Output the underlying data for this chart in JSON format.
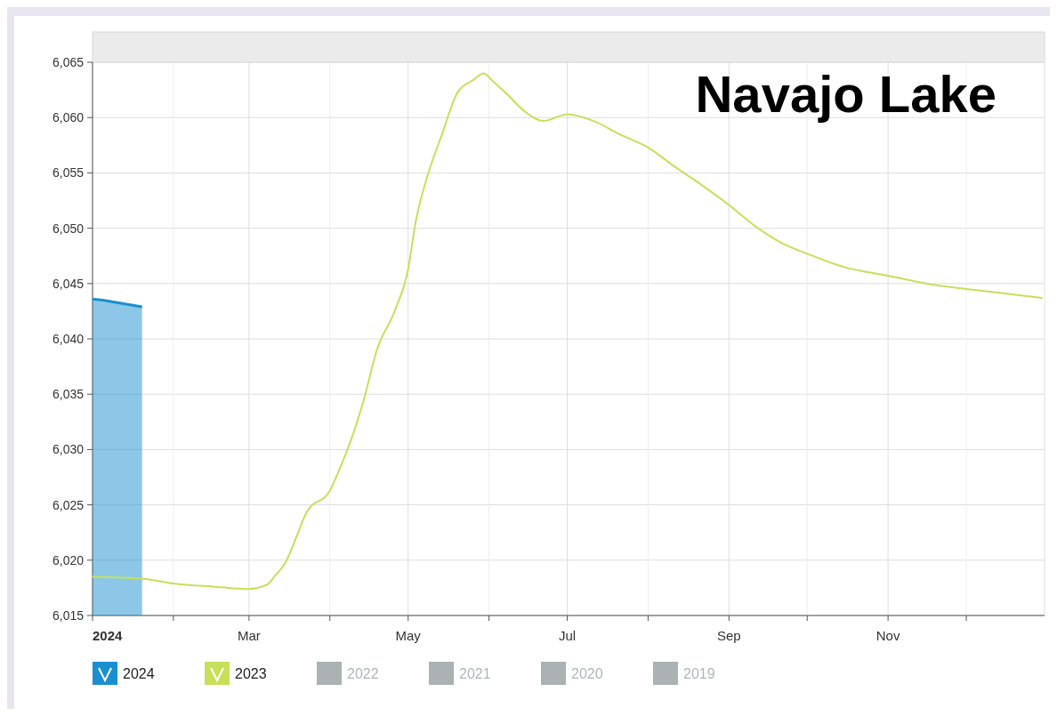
{
  "chart_data": {
    "type": "line",
    "title": "Navajo Lake",
    "xlim": [
      "2024-01-01",
      "2024-12-31"
    ],
    "xticks": [
      {
        "value": "2024-01-01",
        "label": "2024"
      },
      {
        "value": "2024-02-01",
        "label": null
      },
      {
        "value": "2024-03-01",
        "label": "Mar"
      },
      {
        "value": "2024-04-01",
        "label": null
      },
      {
        "value": "2024-05-01",
        "label": "May"
      },
      {
        "value": "2024-06-01",
        "label": null
      },
      {
        "value": "2024-07-01",
        "label": "Jul"
      },
      {
        "value": "2024-08-01",
        "label": null
      },
      {
        "value": "2024-09-01",
        "label": "Sep"
      },
      {
        "value": "2024-10-01",
        "label": null
      },
      {
        "value": "2024-11-01",
        "label": "Nov"
      },
      {
        "value": "2024-12-01",
        "label": null
      }
    ],
    "ylim": [
      6015,
      6065
    ],
    "yticks": [
      {
        "value": 6015,
        "label": "6,015"
      },
      {
        "value": 6020,
        "label": "6,020"
      },
      {
        "value": 6025,
        "label": "6,025"
      },
      {
        "value": 6030,
        "label": "6,030"
      },
      {
        "value": 6035,
        "label": "6,035"
      },
      {
        "value": 6040,
        "label": "6,040"
      },
      {
        "value": 6045,
        "label": "6,045"
      },
      {
        "value": 6050,
        "label": "6,050"
      },
      {
        "value": 6055,
        "label": "6,055"
      },
      {
        "value": 6060,
        "label": "6,060"
      },
      {
        "value": 6065,
        "label": "6,065"
      }
    ],
    "grid": true,
    "legend": "bottom",
    "series": [
      {
        "name": "2024",
        "type": "area",
        "color": "#1a8fd0",
        "x": [
          "2024-01-01",
          "2024-01-05",
          "2024-01-10",
          "2024-01-15",
          "2024-01-20"
        ],
        "values": [
          6043.6,
          6043.5,
          6043.3,
          6043.1,
          6042.9
        ]
      },
      {
        "name": "2023",
        "color": "#c6e05a",
        "x": [
          "2024-01-01",
          "2024-01-21",
          "2024-02-01",
          "2024-02-17",
          "2024-03-01",
          "2024-03-08",
          "2024-03-11",
          "2024-03-15",
          "2024-03-18",
          "2024-03-23",
          "2024-04-01",
          "2024-04-05",
          "2024-04-09",
          "2024-04-14",
          "2024-04-19",
          "2024-04-26",
          "2024-05-01",
          "2024-05-04",
          "2024-05-08",
          "2024-05-14",
          "2024-05-20",
          "2024-05-26",
          "2024-05-30",
          "2024-06-02",
          "2024-06-08",
          "2024-06-15",
          "2024-06-22",
          "2024-07-01",
          "2024-07-11",
          "2024-07-21",
          "2024-08-01",
          "2024-08-11",
          "2024-08-21",
          "2024-09-01",
          "2024-09-11",
          "2024-09-21",
          "2024-10-01",
          "2024-10-15",
          "2024-11-01",
          "2024-11-18",
          "2024-12-01",
          "2024-12-16",
          "2024-12-30"
        ],
        "values": [
          6018.5,
          6018.3,
          6017.9,
          6017.6,
          6017.4,
          6017.8,
          6018.6,
          6019.8,
          6021.4,
          6024.3,
          6026.3,
          6028.4,
          6030.8,
          6034.5,
          6039,
          6042.6,
          6046.3,
          6050.7,
          6054.4,
          6058.5,
          6062.3,
          6063.4,
          6064,
          6063.4,
          6062.1,
          6060.5,
          6059.7,
          6060.3,
          6059.7,
          6058.5,
          6057.3,
          6055.6,
          6054,
          6052.1,
          6050.2,
          6048.7,
          6047.7,
          6046.5,
          6045.7,
          6044.9,
          6044.5,
          6044.1,
          6043.7
        ]
      },
      {
        "name": "2022",
        "color": "#abb2b3"
      },
      {
        "name": "2021",
        "color": "#abb2b3"
      },
      {
        "name": "2020",
        "color": "#abb2b3"
      },
      {
        "name": "2019",
        "color": "#abb2b3"
      }
    ]
  }
}
